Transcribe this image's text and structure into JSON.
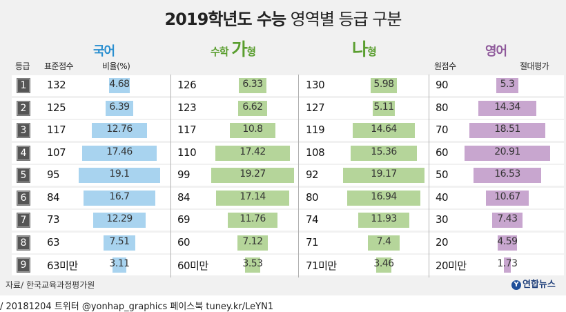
{
  "title_bold": "2019학년도 수능",
  "title_rest": " 영역별 등급 구분",
  "subjects": {
    "korean": "국어",
    "math_prefix": "수학",
    "math_ga": "가",
    "math_suffix": "형",
    "math_na": "나",
    "math_na_suffix": "형",
    "english": "영어"
  },
  "headers": {
    "grade": "등급",
    "std_score": "표준점수",
    "ratio": "비율(%)",
    "raw_score": "원점수",
    "absolute": "절대평가"
  },
  "colors": {
    "korean": "#a8d3ef",
    "math_ga": "#b5d59a",
    "math_na": "#b5d59a",
    "english": "#c8a6cf"
  },
  "chart_data": {
    "type": "table",
    "title": "2019학년도 수능 영역별 등급 구분",
    "columns": [
      "국어",
      "수학 가형",
      "수학 나형",
      "영어"
    ],
    "rows": [
      {
        "grade": "1",
        "korean": {
          "score": "132",
          "pct": 4.68,
          "label": "4.68"
        },
        "math_ga": {
          "score": "126",
          "pct": 6.33,
          "label": "6.33"
        },
        "math_na": {
          "score": "130",
          "pct": 5.98,
          "label": "5.98"
        },
        "english": {
          "score": "90",
          "pct": 5.3,
          "label": "5.3"
        }
      },
      {
        "grade": "2",
        "korean": {
          "score": "125",
          "pct": 6.39,
          "label": "6.39"
        },
        "math_ga": {
          "score": "123",
          "pct": 6.62,
          "label": "6.62"
        },
        "math_na": {
          "score": "127",
          "pct": 5.11,
          "label": "5.11"
        },
        "english": {
          "score": "80",
          "pct": 14.34,
          "label": "14.34"
        }
      },
      {
        "grade": "3",
        "korean": {
          "score": "117",
          "pct": 12.76,
          "label": "12.76"
        },
        "math_ga": {
          "score": "117",
          "pct": 10.8,
          "label": "10.8"
        },
        "math_na": {
          "score": "119",
          "pct": 14.64,
          "label": "14.64"
        },
        "english": {
          "score": "70",
          "pct": 18.51,
          "label": "18.51"
        }
      },
      {
        "grade": "4",
        "korean": {
          "score": "107",
          "pct": 17.46,
          "label": "17.46"
        },
        "math_ga": {
          "score": "110",
          "pct": 17.42,
          "label": "17.42"
        },
        "math_na": {
          "score": "108",
          "pct": 15.36,
          "label": "15.36"
        },
        "english": {
          "score": "60",
          "pct": 20.91,
          "label": "20.91"
        }
      },
      {
        "grade": "5",
        "korean": {
          "score": "95",
          "pct": 19.1,
          "label": "19.1"
        },
        "math_ga": {
          "score": "99",
          "pct": 19.27,
          "label": "19.27"
        },
        "math_na": {
          "score": "92",
          "pct": 19.17,
          "label": "19.17"
        },
        "english": {
          "score": "50",
          "pct": 16.53,
          "label": "16.53"
        }
      },
      {
        "grade": "6",
        "korean": {
          "score": "84",
          "pct": 16.7,
          "label": "16.7"
        },
        "math_ga": {
          "score": "84",
          "pct": 17.14,
          "label": "17.14"
        },
        "math_na": {
          "score": "80",
          "pct": 16.94,
          "label": "16.94"
        },
        "english": {
          "score": "40",
          "pct": 10.67,
          "label": "10.67"
        }
      },
      {
        "grade": "7",
        "korean": {
          "score": "73",
          "pct": 12.29,
          "label": "12.29"
        },
        "math_ga": {
          "score": "69",
          "pct": 11.76,
          "label": "11.76"
        },
        "math_na": {
          "score": "74",
          "pct": 11.93,
          "label": "11.93"
        },
        "english": {
          "score": "30",
          "pct": 7.43,
          "label": "7.43"
        }
      },
      {
        "grade": "8",
        "korean": {
          "score": "63",
          "pct": 7.51,
          "label": "7.51"
        },
        "math_ga": {
          "score": "60",
          "pct": 7.12,
          "label": "7.12"
        },
        "math_na": {
          "score": "71",
          "pct": 7.4,
          "label": "7.4"
        },
        "english": {
          "score": "20",
          "pct": 4.59,
          "label": "4.59"
        }
      },
      {
        "grade": "9",
        "korean": {
          "score": "63미만",
          "pct": 3.11,
          "label": "3.11"
        },
        "math_ga": {
          "score": "60미만",
          "pct": 3.53,
          "label": "3.53"
        },
        "math_na": {
          "score": "71미만",
          "pct": 3.46,
          "label": "3.46"
        },
        "english": {
          "score": "20미만",
          "pct": 1.73,
          "label": "1.73"
        }
      }
    ]
  },
  "footer": {
    "source": "자료/ 한국교육과정평가원",
    "logo_mark": "Y",
    "logo_text": "연합뉴스",
    "caption": "/ 20181204   트위터 @yonhap_graphics  페이스북 tuney.kr/LeYN1"
  }
}
